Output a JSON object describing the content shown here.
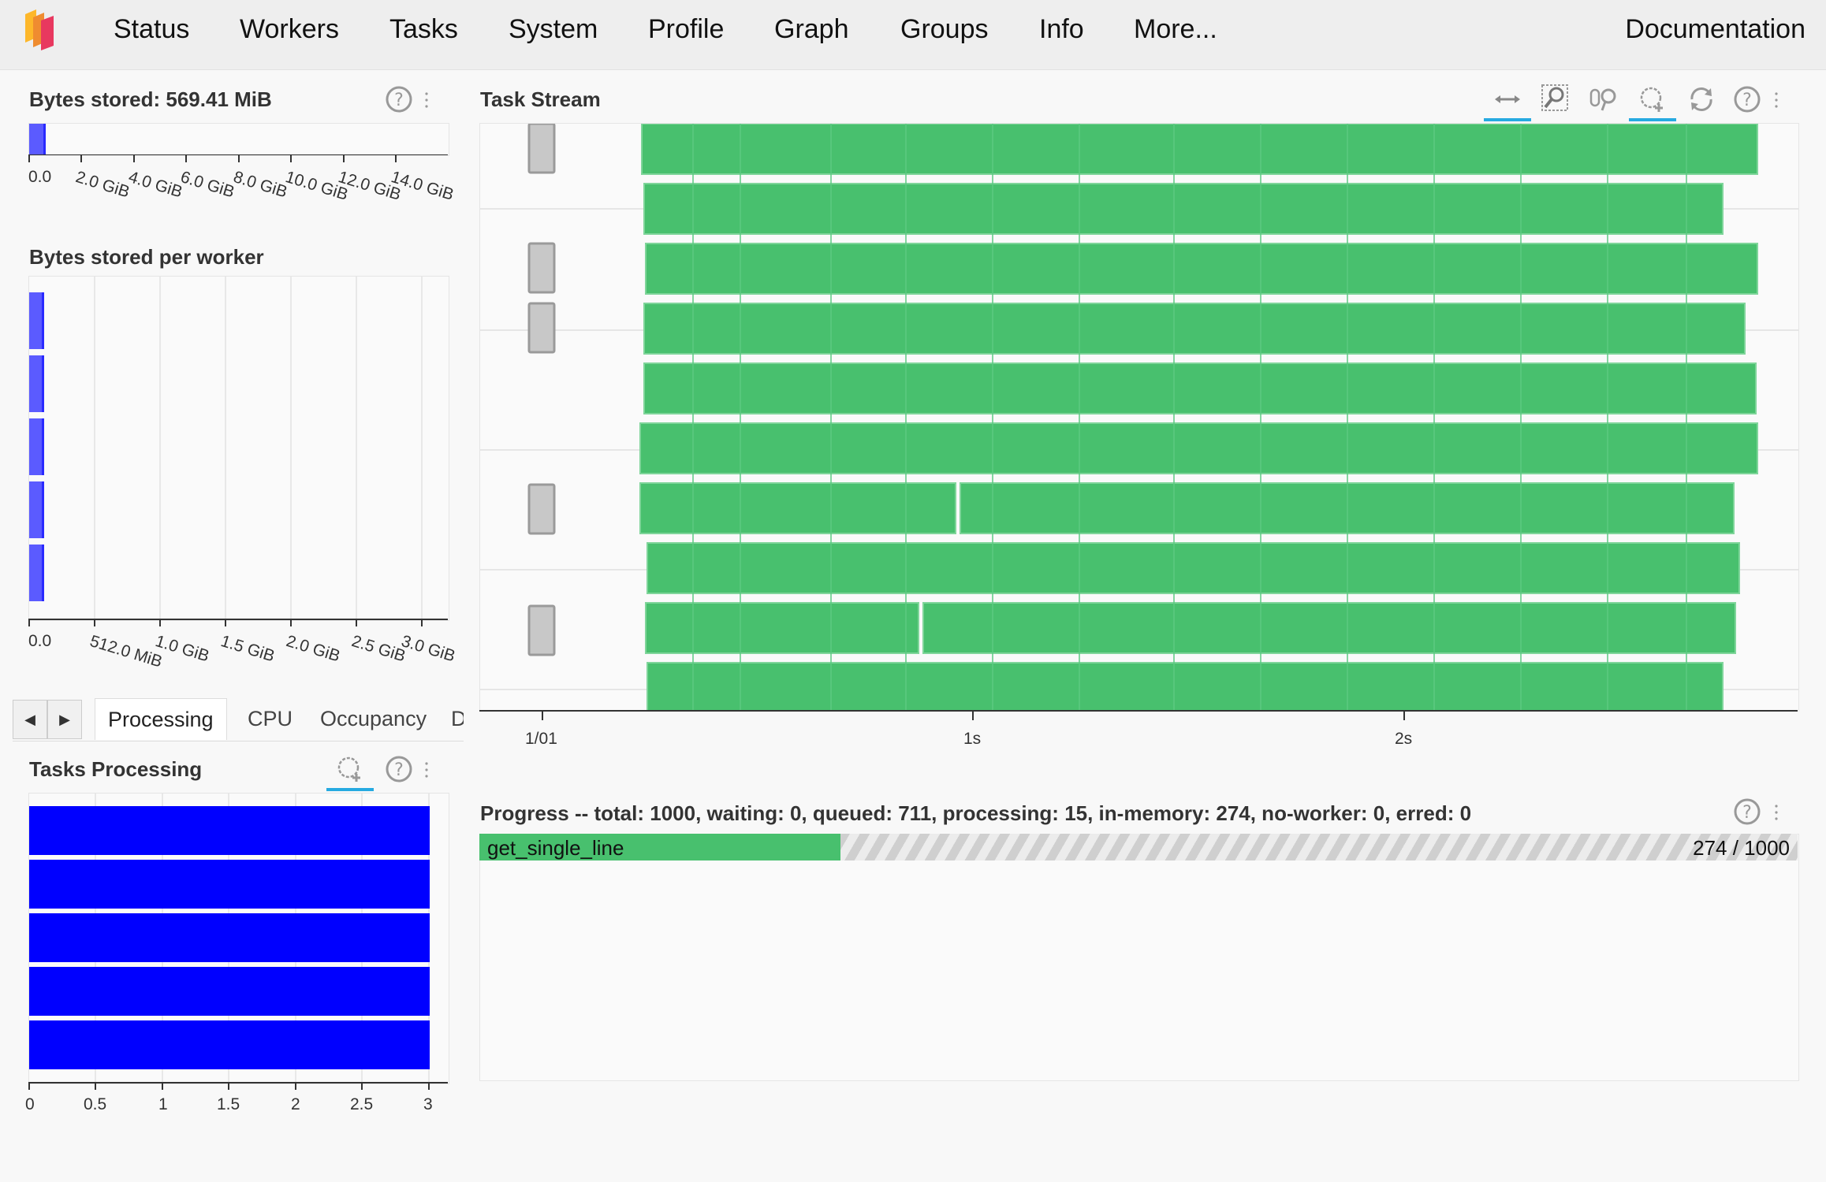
{
  "nav": {
    "items": [
      "Status",
      "Workers",
      "Tasks",
      "System",
      "Profile",
      "Graph",
      "Groups",
      "Info",
      "More..."
    ],
    "documentation": "Documentation"
  },
  "bytes_stored": {
    "title": "Bytes stored: 569.41 MiB",
    "ticks": [
      "0.0",
      "2.0 GiB",
      "4.0 GiB",
      "6.0 GiB",
      "8.0 GiB",
      "10.0 GiB",
      "12.0 GiB",
      "14.0 GiB"
    ]
  },
  "bytes_per_worker": {
    "title": "Bytes stored per worker",
    "ticks": [
      "0.0",
      "512.0 MiB",
      "1.0 GiB",
      "1.5 GiB",
      "2.0 GiB",
      "2.5 GiB",
      "3.0 GiB"
    ]
  },
  "task_stream": {
    "title": "Task Stream",
    "ticks": [
      "1/01",
      "1s",
      "2s"
    ]
  },
  "tabs": [
    "Processing",
    "CPU",
    "Occupancy",
    "Da"
  ],
  "tasks_processing": {
    "title": "Tasks Processing",
    "ticks": [
      "0",
      "0.5",
      "1",
      "1.5",
      "2",
      "2.5",
      "3"
    ]
  },
  "progress": {
    "title": "Progress -- total: 1000, waiting: 0, queued: 711, processing: 15, in-memory: 274, no-worker: 0, erred: 0",
    "name": "get_single_line",
    "count": "274 / 1000",
    "fraction": 0.274
  },
  "colors": {
    "task": "#48c06e",
    "bar_blue": "#0000ff",
    "worker_bar": "#5b5bff",
    "accent": "#26aae1"
  },
  "icons": [
    "pan-icon",
    "box-zoom-icon",
    "wheel-zoom-icon",
    "hover-icon",
    "reset-icon",
    "help-icon"
  ]
}
